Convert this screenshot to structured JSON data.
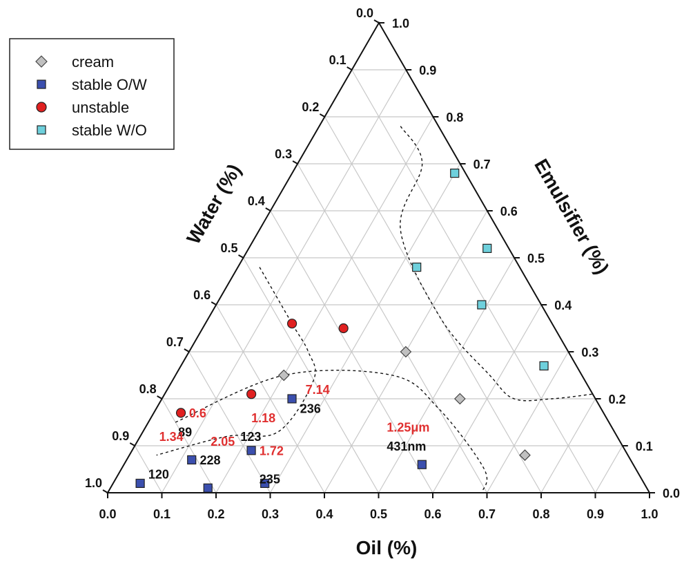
{
  "chart_data": {
    "type": "scatter",
    "subtype": "ternary",
    "axes": {
      "bottom": {
        "label": "Oil (%)",
        "ticks": [
          "0.0",
          "0.1",
          "0.2",
          "0.3",
          "0.4",
          "0.5",
          "0.6",
          "0.7",
          "0.8",
          "0.9",
          "1.0"
        ]
      },
      "left": {
        "label": "Water (%)",
        "ticks": [
          "0.0",
          "0.1",
          "0.2",
          "0.3",
          "0.4",
          "0.5",
          "0.6",
          "0.7",
          "0.8",
          "0.9",
          "1.0"
        ]
      },
      "right": {
        "label": "Emulsifier (%)",
        "ticks": [
          "0.0",
          "0.1",
          "0.2",
          "0.3",
          "0.4",
          "0.5",
          "0.6",
          "0.7",
          "0.8",
          "0.9",
          "1.0"
        ]
      }
    },
    "grid": true,
    "grid_step": 0.1,
    "legend_position": "top-left",
    "legend": [
      {
        "key": "cream",
        "label": "cream",
        "marker": "diamond",
        "color": "#c0c0c0"
      },
      {
        "key": "stable_ow",
        "label": "stable O/W",
        "marker": "square",
        "color": "#3b4fae"
      },
      {
        "key": "unstable",
        "label": "unstable",
        "marker": "circle",
        "color": "#e02020"
      },
      {
        "key": "stable_wo",
        "label": "stable W/O",
        "marker": "square",
        "color": "#6ed0dc"
      }
    ],
    "series": [
      {
        "key": "cream",
        "points": [
          {
            "oil": 0.2,
            "water": 0.55,
            "emulsifier": 0.25
          },
          {
            "oil": 0.4,
            "water": 0.3,
            "emulsifier": 0.3
          },
          {
            "oil": 0.55,
            "water": 0.25,
            "emulsifier": 0.2
          },
          {
            "oil": 0.73,
            "water": 0.19,
            "emulsifier": 0.08
          }
        ]
      },
      {
        "key": "stable_ow",
        "points": [
          {
            "oil": 0.05,
            "water": 0.93,
            "emulsifier": 0.02
          },
          {
            "oil": 0.12,
            "water": 0.81,
            "emulsifier": 0.07
          },
          {
            "oil": 0.18,
            "water": 0.81,
            "emulsifier": 0.01
          },
          {
            "oil": 0.22,
            "water": 0.69,
            "emulsifier": 0.09
          },
          {
            "oil": 0.28,
            "water": 0.7,
            "emulsifier": 0.02
          },
          {
            "oil": 0.24,
            "water": 0.56,
            "emulsifier": 0.2
          },
          {
            "oil": 0.55,
            "water": 0.39,
            "emulsifier": 0.06
          }
        ]
      },
      {
        "key": "unstable",
        "points": [
          {
            "oil": 0.05,
            "water": 0.78,
            "emulsifier": 0.17
          },
          {
            "oil": 0.16,
            "water": 0.63,
            "emulsifier": 0.21
          },
          {
            "oil": 0.16,
            "water": 0.48,
            "emulsifier": 0.36
          },
          {
            "oil": 0.26,
            "water": 0.39,
            "emulsifier": 0.35
          }
        ]
      },
      {
        "key": "stable_wo",
        "points": [
          {
            "oil": 0.3,
            "water": 0.02,
            "emulsifier": 0.68
          },
          {
            "oil": 0.44,
            "water": 0.04,
            "emulsifier": 0.52
          },
          {
            "oil": 0.33,
            "water": 0.19,
            "emulsifier": 0.48
          },
          {
            "oil": 0.49,
            "water": 0.11,
            "emulsifier": 0.4
          },
          {
            "oil": 0.67,
            "water": 0.06,
            "emulsifier": 0.27
          }
        ]
      }
    ],
    "boundaries": [
      [
        {
          "oil": 0.05,
          "water": 0.8,
          "emulsifier": 0.15
        },
        {
          "oil": 0.2,
          "water": 0.55,
          "emulsifier": 0.25
        },
        {
          "oil": 0.4,
          "water": 0.35,
          "emulsifier": 0.25
        },
        {
          "oil": 0.52,
          "water": 0.3,
          "emulsifier": 0.18
        },
        {
          "oil": 0.67,
          "water": 0.28,
          "emulsifier": 0.05
        },
        {
          "oil": 0.69,
          "water": 0.31,
          "emulsifier": 0.0
        }
      ],
      [
        {
          "oil": 0.04,
          "water": 0.48,
          "emulsifier": 0.48
        },
        {
          "oil": 0.16,
          "water": 0.48,
          "emulsifier": 0.36
        },
        {
          "oil": 0.22,
          "water": 0.48,
          "emulsifier": 0.3
        },
        {
          "oil": 0.26,
          "water": 0.5,
          "emulsifier": 0.24
        },
        {
          "oil": 0.25,
          "water": 0.62,
          "emulsifier": 0.13
        },
        {
          "oil": 0.16,
          "water": 0.72,
          "emulsifier": 0.12
        },
        {
          "oil": 0.05,
          "water": 0.87,
          "emulsifier": 0.08
        }
      ],
      [
        {
          "oil": 0.15,
          "water": 0.07,
          "emulsifier": 0.78
        },
        {
          "oil": 0.23,
          "water": 0.07,
          "emulsifier": 0.7
        },
        {
          "oil": 0.26,
          "water": 0.18,
          "emulsifier": 0.56
        },
        {
          "oil": 0.43,
          "water": 0.2,
          "emulsifier": 0.37
        },
        {
          "oil": 0.58,
          "water": 0.17,
          "emulsifier": 0.25
        },
        {
          "oil": 0.65,
          "water": 0.15,
          "emulsifier": 0.2
        },
        {
          "oil": 0.72,
          "water": 0.08,
          "emulsifier": 0.2
        },
        {
          "oil": 0.79,
          "water": 0.0,
          "emulsifier": 0.21
        }
      ]
    ],
    "annotations": [
      {
        "text": "7.14",
        "color": "#e03030",
        "oil": 0.26,
        "water": 0.53,
        "emulsifier": 0.21
      },
      {
        "text": "236",
        "color": "#111111",
        "oil": 0.27,
        "water": 0.56,
        "emulsifier": 0.17
      },
      {
        "text": "0.6",
        "color": "#e03030",
        "oil": 0.07,
        "water": 0.77,
        "emulsifier": 0.16
      },
      {
        "text": "89",
        "color": "#111111",
        "oil": 0.07,
        "water": 0.81,
        "emulsifier": 0.12
      },
      {
        "text": "1.18",
        "color": "#e03030",
        "oil": 0.19,
        "water": 0.66,
        "emulsifier": 0.15
      },
      {
        "text": "123",
        "color": "#111111",
        "oil": 0.19,
        "water": 0.7,
        "emulsifier": 0.11
      },
      {
        "text": "1.34",
        "color": "#e03030",
        "oil": 0.04,
        "water": 0.85,
        "emulsifier": 0.11
      },
      {
        "text": "120",
        "color": "#111111",
        "oil": 0.06,
        "water": 0.91,
        "emulsifier": 0.03
      },
      {
        "text": "2.05",
        "color": "#e03030",
        "oil": 0.14,
        "water": 0.76,
        "emulsifier": 0.1
      },
      {
        "text": "228",
        "color": "#111111",
        "oil": 0.14,
        "water": 0.8,
        "emulsifier": 0.06
      },
      {
        "text": "1.72",
        "color": "#e03030",
        "oil": 0.24,
        "water": 0.68,
        "emulsifier": 0.08
      },
      {
        "text": "235",
        "color": "#111111",
        "oil": 0.27,
        "water": 0.71,
        "emulsifier": 0.02
      },
      {
        "text": "1.25μm",
        "color": "#e03030",
        "oil": 0.45,
        "water": 0.42,
        "emulsifier": 0.13
      },
      {
        "text": "431nm",
        "color": "#111111",
        "oil": 0.47,
        "water": 0.44,
        "emulsifier": 0.09
      }
    ]
  }
}
